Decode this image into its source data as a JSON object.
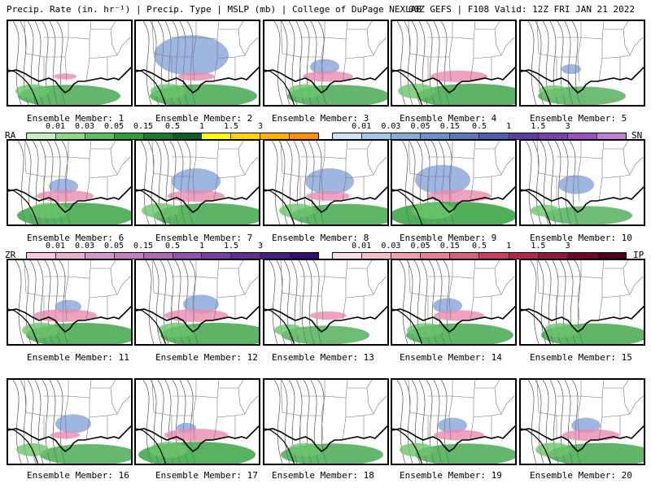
{
  "header": {
    "left": "Precip. Rate (in. hr⁻¹) | Precip. Type | MSLP (mb) | College of DuPage NEXLAB",
    "right": "00Z GEFS | F108 Valid: 12Z FRI JAN 21 2022"
  },
  "members": [
    {
      "label": "Ensemble Member: 1",
      "rain": 0.55,
      "snow": 0.0,
      "ice": 0.1
    },
    {
      "label": "Ensemble Member: 2",
      "rain": 0.6,
      "snow": 0.9,
      "ice": 0.3
    },
    {
      "label": "Ensemble Member: 3",
      "rain": 0.55,
      "snow": 0.2,
      "ice": 0.5
    },
    {
      "label": "Ensemble Member: 4",
      "rain": 0.65,
      "snow": 0.0,
      "ice": 0.6
    },
    {
      "label": "Ensemble Member: 5",
      "rain": 0.4,
      "snow": 0.05,
      "ice": 0.0
    },
    {
      "label": "Ensemble Member: 6",
      "rain": 0.7,
      "snow": 0.2,
      "ice": 0.6
    },
    {
      "label": "Ensemble Member: 7",
      "rain": 0.65,
      "snow": 0.5,
      "ice": 0.6
    },
    {
      "label": "Ensemble Member: 8",
      "rain": 0.6,
      "snow": 0.5,
      "ice": 0.4
    },
    {
      "label": "Ensemble Member: 9",
      "rain": 0.8,
      "snow": 0.6,
      "ice": 0.7
    },
    {
      "label": "Ensemble Member: 10",
      "rain": 0.4,
      "snow": 0.3,
      "ice": 0.0
    },
    {
      "label": "Ensemble Member: 11",
      "rain": 0.65,
      "snow": 0.15,
      "ice": 0.7
    },
    {
      "label": "Ensemble Member: 12",
      "rain": 0.65,
      "snow": 0.3,
      "ice": 0.7
    },
    {
      "label": "Ensemble Member: 13",
      "rain": 0.4,
      "snow": 0.0,
      "ice": 0.3
    },
    {
      "label": "Ensemble Member: 14",
      "rain": 0.6,
      "snow": 0.2,
      "ice": 0.5
    },
    {
      "label": "Ensemble Member: 15",
      "rain": 0.6,
      "snow": 0.0,
      "ice": 0.0
    },
    {
      "label": "Ensemble Member: 16",
      "rain": 0.5,
      "snow": 0.3,
      "ice": 0.2
    },
    {
      "label": "Ensemble Member: 17",
      "rain": 0.7,
      "snow": 0.05,
      "ice": 0.7
    },
    {
      "label": "Ensemble Member: 18",
      "rain": 0.55,
      "snow": 0.0,
      "ice": 0.0
    },
    {
      "label": "Ensemble Member: 19",
      "rain": 0.55,
      "snow": 0.2,
      "ice": 0.5
    },
    {
      "label": "Ensemble Member: 20",
      "rain": 0.6,
      "snow": 0.2,
      "ice": 0.6
    }
  ],
  "legends": {
    "rain": {
      "tag": "RA",
      "ticks": [
        "0.01",
        "0.03",
        "0.05",
        "0.15",
        "0.5",
        "1",
        "1.5",
        "3"
      ],
      "colors": [
        "#c8f0c0",
        "#8fd88a",
        "#5cbf5c",
        "#2e9e3a",
        "#1a7a2c",
        "#0f5c1f",
        "#ffff00",
        "#ffd200",
        "#ffb000",
        "#ff9000"
      ]
    },
    "snow": {
      "tag": "SN",
      "ticks": [
        "0.01",
        "0.03",
        "0.05",
        "0.15",
        "0.5",
        "1",
        "1.5",
        "3"
      ],
      "colors": [
        "#cfe4f5",
        "#a6c8e8",
        "#84add8",
        "#6a92c8",
        "#5a78b8",
        "#4c5fa8",
        "#5a3fa0",
        "#7b3fb0",
        "#9b4fc0",
        "#c080d8"
      ]
    },
    "ice": {
      "tag": "ZR",
      "ticks": [
        "0.01",
        "0.03",
        "0.05",
        "0.15",
        "0.5",
        "1",
        "1.5",
        "3"
      ],
      "colors": [
        "#f8c8e0",
        "#eab0d0",
        "#d898c8",
        "#c480c0",
        "#b068b8",
        "#9850b0",
        "#7840a0",
        "#603090",
        "#482080",
        "#301070"
      ]
    },
    "sleet": {
      "tag": "IP",
      "ticks": [
        "0.01",
        "0.03",
        "0.05",
        "0.15",
        "0.5",
        "1",
        "1.5",
        "3"
      ],
      "colors": [
        "#fde0e4",
        "#f8c0c8",
        "#f0a0ac",
        "#e48090",
        "#d86078",
        "#c84060",
        "#b02848",
        "#901838",
        "#700828",
        "#500018"
      ]
    }
  }
}
